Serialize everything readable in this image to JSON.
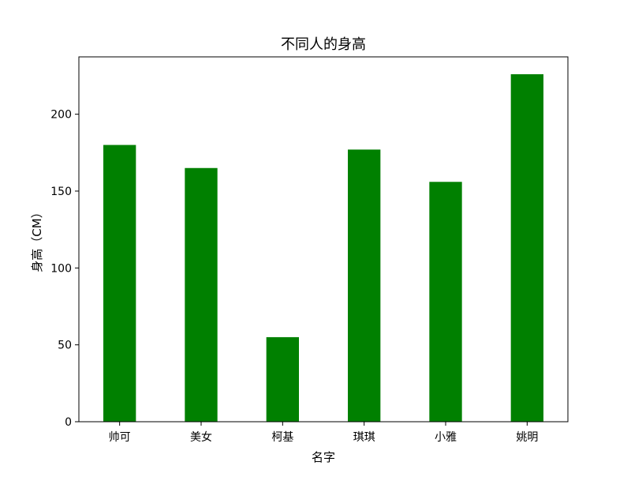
{
  "chart_data": {
    "type": "bar",
    "title": "不同人的身高",
    "xlabel": "名字",
    "ylabel": "身高（CM）",
    "categories": [
      "帅可",
      "美女",
      "柯基",
      "琪琪",
      "小雅",
      "姚明"
    ],
    "values": [
      180,
      165,
      55,
      177,
      156,
      226
    ],
    "ylim": [
      0,
      237.3
    ],
    "yticks": [
      0,
      50,
      100,
      150,
      200
    ],
    "grid": false,
    "bar_color": "#008000"
  }
}
